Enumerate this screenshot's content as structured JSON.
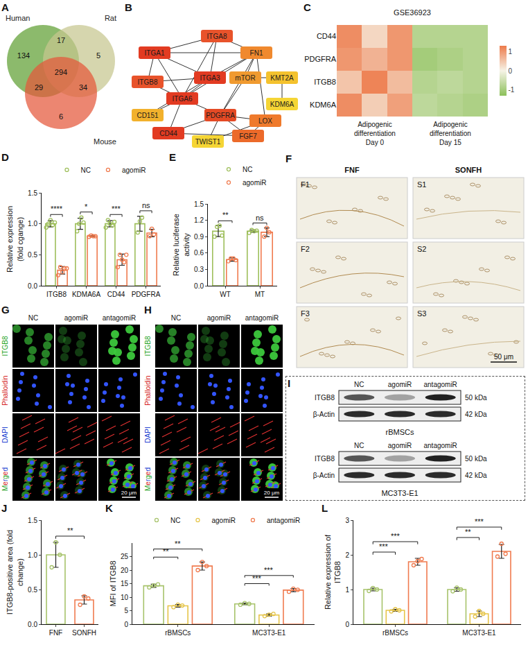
{
  "chart_data": [
    {
      "panel": "A",
      "type": "venn",
      "sets": [
        {
          "name": "Human",
          "color": "#5fa033"
        },
        {
          "name": "Rat",
          "color": "#c6c68f"
        },
        {
          "name": "Mouse",
          "color": "#e4573a"
        }
      ],
      "regions": [
        {
          "sets": [
            "Human"
          ],
          "value": 134
        },
        {
          "sets": [
            "Rat"
          ],
          "value": 5
        },
        {
          "sets": [
            "Mouse"
          ],
          "value": 6
        },
        {
          "sets": [
            "Human",
            "Rat"
          ],
          "value": 17
        },
        {
          "sets": [
            "Human",
            "Mouse"
          ],
          "value": 29
        },
        {
          "sets": [
            "Rat",
            "Mouse"
          ],
          "value": 34
        },
        {
          "sets": [
            "Human",
            "Rat",
            "Mouse"
          ],
          "value": 294
        }
      ]
    },
    {
      "panel": "B",
      "type": "network",
      "nodes": [
        {
          "label": "ITGA8",
          "color": "#e8532b"
        },
        {
          "label": "ITGA1",
          "color": "#e23b22"
        },
        {
          "label": "FN1",
          "color": "#f0892e"
        },
        {
          "label": "ITGB8",
          "color": "#e8532b"
        },
        {
          "label": "ITGA3",
          "color": "#e23b22"
        },
        {
          "label": "mTOR",
          "color": "#f09a30"
        },
        {
          "label": "KMT2A",
          "color": "#f4c22e"
        },
        {
          "label": "ITGA6",
          "color": "#e23b22"
        },
        {
          "label": "KDM6A",
          "color": "#f5d535"
        },
        {
          "label": "CD151",
          "color": "#f2b12c"
        },
        {
          "label": "PDGFRA",
          "color": "#e44a25"
        },
        {
          "label": "LOX",
          "color": "#ef7a2c"
        },
        {
          "label": "CD44",
          "color": "#e23b22"
        },
        {
          "label": "TWIST1",
          "color": "#f5d535"
        },
        {
          "label": "FGF7",
          "color": "#ec6a2a"
        }
      ],
      "edges": [
        [
          "ITGA8",
          "ITGA1"
        ],
        [
          "ITGA8",
          "FN1"
        ],
        [
          "ITGA8",
          "ITGA3"
        ],
        [
          "ITGA8",
          "ITGA6"
        ],
        [
          "ITGA1",
          "ITGB8"
        ],
        [
          "ITGA1",
          "ITGA3"
        ],
        [
          "ITGA1",
          "ITGA6"
        ],
        [
          "ITGA1",
          "FN1"
        ],
        [
          "FN1",
          "ITGA3"
        ],
        [
          "FN1",
          "mTOR"
        ],
        [
          "FN1",
          "PDGFRA"
        ],
        [
          "FN1",
          "LOX"
        ],
        [
          "FN1",
          "ITGA6"
        ],
        [
          "mTOR",
          "KMT2A"
        ],
        [
          "mTOR",
          "PDGFRA"
        ],
        [
          "KMT2A",
          "KDM6A"
        ],
        [
          "ITGB8",
          "ITGA6"
        ],
        [
          "ITGB8",
          "ITGA3"
        ],
        [
          "ITGA3",
          "ITGA6"
        ],
        [
          "ITGA6",
          "CD151"
        ],
        [
          "ITGA3",
          "CD151"
        ],
        [
          "ITGA6",
          "CD44"
        ],
        [
          "ITGA6",
          "PDGFRA"
        ],
        [
          "PDGFRA",
          "CD44"
        ],
        [
          "PDGFRA",
          "FGF7"
        ],
        [
          "PDGFRA",
          "LOX"
        ],
        [
          "PDGFRA",
          "TWIST1"
        ],
        [
          "LOX",
          "TWIST1"
        ],
        [
          "LOX",
          "FGF7"
        ],
        [
          "CD44",
          "FGF7"
        ]
      ]
    },
    {
      "panel": "C",
      "type": "heatmap",
      "title": "GSE36923",
      "rows": [
        "CD44",
        "PDGFRA",
        "ITGB8",
        "KDM6A"
      ],
      "column_groups": [
        "Adipogenic differentiation Day 0",
        "Adipogenic differentiation Day 0",
        "Adipogenic differentiation Day 0",
        "Adipogenic differentiation Day 15",
        "Adipogenic differentiation Day 15",
        "Adipogenic differentiation Day 15"
      ],
      "cells": [
        [
          1.1,
          0.3,
          1.0,
          -0.8,
          -0.8,
          -0.8
        ],
        [
          1.0,
          0.7,
          1.0,
          -1.0,
          -0.9,
          -0.8
        ],
        [
          0.5,
          1.2,
          0.6,
          -0.8,
          -0.7,
          -0.8
        ],
        [
          1.1,
          0.4,
          0.9,
          -0.7,
          -0.8,
          -0.9
        ]
      ],
      "zlim": [
        -1.3,
        1.3
      ],
      "zticks": [
        -1,
        0,
        1
      ]
    },
    {
      "panel": "D",
      "type": "bar",
      "categories": [
        "ITGB8",
        "KDMA6A",
        "CD44",
        "PDGFRA"
      ],
      "y_label": "Relative expression (fold cgange)",
      "ylim": [
        0,
        1.5
      ],
      "yticks": [
        {
          "value": 0,
          "label": "0.0"
        },
        0.5,
        {
          "value": 1,
          "label": "1.0"
        },
        1.5
      ],
      "legend": "top",
      "series": [
        {
          "name": "NC",
          "color": "#9ebf5b",
          "values": [
            1.0,
            1.0,
            1.0,
            1.0
          ],
          "error": [
            0.05,
            0.09,
            0.05,
            0.12
          ],
          "points": [
            [
              0.94,
              1.0,
              1.06,
              0.98,
              1.02
            ],
            [
              0.88,
              1.0,
              1.1,
              1.02
            ],
            [
              0.94,
              1.06,
              1.0,
              0.97,
              1.03
            ],
            [
              0.86,
              1.04,
              1.1
            ]
          ]
        },
        {
          "name": "agomiR",
          "color": "#f07b4f",
          "values": [
            0.25,
            0.8,
            0.42,
            0.85
          ],
          "error": [
            0.06,
            0.01,
            0.09,
            0.06
          ],
          "points": [
            [
              0.17,
              0.3,
              0.22,
              0.28,
              0.28
            ],
            [
              0.79,
              0.81,
              0.8,
              0.8
            ],
            [
              0.3,
              0.5,
              0.42,
              0.38,
              0.5
            ],
            [
              0.8,
              0.92,
              0.83
            ]
          ]
        }
      ],
      "comparisons": [
        {
          "category": "ITGB8",
          "from": "NC",
          "to": "agomiR",
          "label": "****"
        },
        {
          "category": "KDMA6A",
          "from": "NC",
          "to": "agomiR",
          "label": "*"
        },
        {
          "category": "CD44",
          "from": "NC",
          "to": "agomiR",
          "label": "***"
        },
        {
          "category": "PDGFRA",
          "from": "NC",
          "to": "agomiR",
          "label": "ns"
        }
      ]
    },
    {
      "panel": "E",
      "type": "bar",
      "categories": [
        "WT",
        "MT"
      ],
      "y_label": "Relative luciferase activity",
      "ylim": [
        0,
        1.5
      ],
      "yticks": [
        {
          "value": 0,
          "label": "0.0"
        },
        0.3,
        0.6,
        0.9,
        1.2,
        1.5
      ],
      "legend": "top",
      "series": [
        {
          "name": "NC",
          "color": "#9ebf5b",
          "values": [
            1.0,
            1.0
          ],
          "error": [
            0.1,
            0.02
          ],
          "points": [
            [
              0.9,
              1.08,
              1.1,
              0.92
            ],
            [
              0.97,
              1.02,
              1.0,
              1.01
            ]
          ]
        },
        {
          "name": "agomiR",
          "color": "#f07b4f",
          "values": [
            0.48,
            0.98
          ],
          "error": [
            0.03,
            0.08
          ],
          "points": [
            [
              0.45,
              0.5,
              0.5,
              0.47
            ],
            [
              0.9,
              1.06,
              0.98
            ]
          ]
        }
      ],
      "comparisons": [
        {
          "category": "WT",
          "from": "NC",
          "to": "agomiR",
          "label": "**"
        },
        {
          "category": "MT",
          "from": "NC",
          "to": "agomiR",
          "label": "ns"
        }
      ]
    },
    {
      "panel": "F",
      "type": "image_grid",
      "columns": [
        "FNF",
        "SONFH"
      ],
      "tiles": [
        [
          "F1",
          "F2",
          "F3"
        ],
        [
          "S1",
          "S2",
          "S3"
        ]
      ],
      "scale_bar": "50 μm"
    },
    {
      "panel": "G",
      "type": "image_grid",
      "columns": [
        "NC",
        "agomiR",
        "antagomiR"
      ],
      "rows": [
        "ITGB8",
        "Phalloidin",
        "DAPI",
        "Merged"
      ],
      "scale_bar": "20 μm"
    },
    {
      "panel": "H",
      "type": "image_grid",
      "columns": [
        "NC",
        "agomiR",
        "antagomiR"
      ],
      "rows": [
        "ITGB8",
        "Phalloidin",
        "DAPI",
        "Merged"
      ],
      "scale_bar": "20 μm"
    },
    {
      "panel": "I",
      "type": "western_blot",
      "lanes": [
        "NC",
        "agomiR",
        "antagomiR"
      ],
      "blots": [
        {
          "cell": "rBMSCs",
          "bands": [
            {
              "protein": "ITGB8",
              "size": "50 kDa"
            },
            {
              "protein": "β-Actin",
              "size": "42 kDa"
            }
          ]
        },
        {
          "cell": "MC3T3-E1",
          "bands": [
            {
              "protein": "ITGB8",
              "size": "50 kDa"
            },
            {
              "protein": "β-Actin",
              "size": "42 kDa"
            }
          ]
        }
      ]
    },
    {
      "panel": "J",
      "type": "bar",
      "categories": [
        "FNF",
        "SONFH"
      ],
      "y_label": "ITGB8-positive area (fold change)",
      "ylim": [
        0,
        1.5
      ],
      "yticks": [
        {
          "value": 0,
          "label": "0.0"
        },
        0.5,
        {
          "value": 1,
          "label": "1.0"
        },
        1.5
      ],
      "series": [
        {
          "colors": [
            "#a7c36b",
            "#f07b4f"
          ],
          "values": [
            1.0,
            0.35
          ],
          "error": [
            0.18,
            0.06
          ],
          "points": [
            [
              0.82,
              1.18,
              1.0
            ],
            [
              0.28,
              0.4,
              0.37
            ]
          ]
        }
      ],
      "comparisons": [
        {
          "from": "FNF",
          "to": "SONFH",
          "label": "**"
        }
      ]
    },
    {
      "panel": "K",
      "type": "bar",
      "categories": [
        "rBMSCs",
        "MC3T3-E1"
      ],
      "y_label": "MFI of ITGB8",
      "ylim": [
        0,
        30
      ],
      "yticks": [
        0,
        5,
        10,
        15,
        20,
        25
      ],
      "legend": "top",
      "series": [
        {
          "name": "NC",
          "color": "#a7c36b",
          "values": [
            14.2,
            7.5
          ],
          "error": [
            0.6,
            0.3
          ],
          "points": [
            [
              13.6,
              14.3,
              14.7
            ],
            [
              7.2,
              7.8,
              7.5
            ]
          ]
        },
        {
          "name": "agomiR",
          "color": "#e6c549",
          "values": [
            6.8,
            3.4
          ],
          "error": [
            0.5,
            0.4
          ],
          "points": [
            [
              6.3,
              7.2,
              6.9
            ],
            [
              3.0,
              3.5,
              3.8
            ]
          ]
        },
        {
          "name": "antagomiR",
          "color": "#f07b4f",
          "values": [
            21.5,
            12.6
          ],
          "error": [
            1.5,
            0.6
          ],
          "points": [
            [
              20.0,
              23.0,
              21.5
            ],
            [
              12.0,
              13.1,
              12.7
            ]
          ]
        }
      ],
      "comparisons": [
        {
          "category": "rBMSCs",
          "from": "NC",
          "to": "agomiR",
          "label": "**"
        },
        {
          "category": "rBMSCs",
          "from": "NC",
          "to": "antagomiR",
          "label": "**"
        },
        {
          "category": "MC3T3-E1",
          "from": "NC",
          "to": "agomiR",
          "label": "***"
        },
        {
          "category": "MC3T3-E1",
          "from": "NC",
          "to": "antagomiR",
          "label": "***"
        }
      ]
    },
    {
      "panel": "L",
      "type": "bar",
      "categories": [
        "rBMSCs",
        "MC3T3-E1"
      ],
      "y_label": "Relative expression of ITGB8",
      "ylim": [
        0,
        3
      ],
      "yticks": [
        0,
        1,
        2,
        3
      ],
      "series": [
        {
          "name": "NC",
          "color": "#a7c36b",
          "values": [
            1.0,
            1.0
          ],
          "error": [
            0.04,
            0.05
          ],
          "points": [
            [
              0.96,
              1.04,
              1.0
            ],
            [
              0.95,
              1.05,
              1.0
            ]
          ]
        },
        {
          "name": "agomiR",
          "color": "#e6c549",
          "values": [
            0.4,
            0.3
          ],
          "error": [
            0.03,
            0.08
          ],
          "points": [
            [
              0.37,
              0.43,
              0.4
            ],
            [
              0.22,
              0.38,
              0.3
            ]
          ]
        },
        {
          "name": "antagomiR",
          "color": "#f07b4f",
          "values": [
            1.8,
            2.1
          ],
          "error": [
            0.1,
            0.2
          ],
          "points": [
            [
              1.7,
              1.82,
              1.88
            ],
            [
              1.95,
              2.32,
              2.03
            ]
          ]
        }
      ],
      "comparisons": [
        {
          "category": "rBMSCs",
          "from": "NC",
          "to": "agomiR",
          "label": "***"
        },
        {
          "category": "rBMSCs",
          "from": "NC",
          "to": "antagomiR",
          "label": "***"
        },
        {
          "category": "MC3T3-E1",
          "from": "NC",
          "to": "agomiR",
          "label": "**"
        },
        {
          "category": "MC3T3-E1",
          "from": "NC",
          "to": "antagomiR",
          "label": "***"
        }
      ]
    }
  ]
}
